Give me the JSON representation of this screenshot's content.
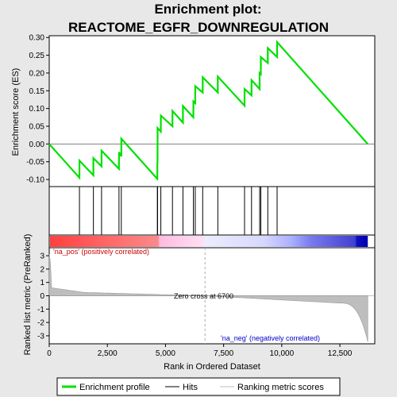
{
  "chart_data": {
    "type": "line",
    "title_line1": "Enrichment plot:",
    "title_line2": "REACTOME_EGFR_DOWNREGULATION",
    "es_ylabel": "Enrichment score (ES)",
    "metric_ylabel": "Ranked list metric (PreRanked)",
    "xlabel": "Rank in Ordered Dataset",
    "xlim": [
      0,
      14000
    ],
    "x_ticks": [
      0,
      2500,
      5000,
      7500,
      10000,
      12500
    ],
    "x_tick_labels": [
      "0",
      "2,500",
      "5,000",
      "7,500",
      "10,000",
      "12,500"
    ],
    "es_ylim": [
      -0.12,
      0.305
    ],
    "es_ticks": [
      -0.1,
      -0.05,
      0.0,
      0.05,
      0.1,
      0.15,
      0.2,
      0.25,
      0.3
    ],
    "es_tick_labels": [
      "-0.10",
      "-0.05",
      "0.00",
      "0.05",
      "0.10",
      "0.15",
      "0.20",
      "0.25",
      "0.30"
    ],
    "metric_ylim": [
      -3.6,
      3.6
    ],
    "metric_ticks": [
      -3,
      -2,
      -1,
      0,
      1,
      2,
      3
    ],
    "metric_tick_labels": [
      "-3",
      "-2",
      "-1",
      "0",
      "1",
      "2",
      "3"
    ],
    "n_genes": 13700,
    "hits": [
      1300,
      1900,
      2250,
      3000,
      3100,
      4650,
      4660,
      4800,
      5300,
      5750,
      6200,
      6280,
      6600,
      7250,
      8400,
      8700,
      9050,
      9100,
      9400,
      9800
    ],
    "es_profile": [
      [
        0,
        0.0
      ],
      [
        1299,
        -0.095
      ],
      [
        1300,
        -0.047
      ],
      [
        1899,
        -0.088
      ],
      [
        1900,
        -0.04
      ],
      [
        2249,
        -0.063
      ],
      [
        2250,
        -0.019
      ],
      [
        2999,
        -0.07
      ],
      [
        3000,
        -0.023
      ],
      [
        3099,
        -0.035
      ],
      [
        3100,
        0.015
      ],
      [
        4649,
        -0.098
      ],
      [
        4650,
        -0.05
      ],
      [
        4659,
        -0.051
      ],
      [
        4660,
        0.045
      ],
      [
        4799,
        0.035
      ],
      [
        4800,
        0.08
      ],
      [
        5299,
        0.05
      ],
      [
        5300,
        0.093
      ],
      [
        5749,
        0.06
      ],
      [
        5750,
        0.107
      ],
      [
        6199,
        0.075
      ],
      [
        6200,
        0.12
      ],
      [
        6279,
        0.115
      ],
      [
        6280,
        0.163
      ],
      [
        6599,
        0.145
      ],
      [
        6600,
        0.188
      ],
      [
        7249,
        0.145
      ],
      [
        7250,
        0.19
      ],
      [
        8399,
        0.108
      ],
      [
        8400,
        0.155
      ],
      [
        8699,
        0.137
      ],
      [
        8700,
        0.18
      ],
      [
        9049,
        0.155
      ],
      [
        9050,
        0.2
      ],
      [
        9099,
        0.197
      ],
      [
        9100,
        0.245
      ],
      [
        9399,
        0.228
      ],
      [
        9400,
        0.27
      ],
      [
        9799,
        0.245
      ],
      [
        9800,
        0.287
      ],
      [
        13700,
        0.0
      ]
    ],
    "zero_cross": 6700,
    "zero_cross_label": "Zero cross at 6700",
    "pos_label": "'na_pos' (positively correlated)",
    "neg_label": "'na_neg' (negatively correlated)",
    "legend": [
      "Enrichment profile",
      "Hits",
      "Ranking metric scores"
    ],
    "colors": {
      "profile": "#00e000",
      "hits": "#000000",
      "metric_fill": "#bebebe",
      "pos_text": "#cc0000",
      "neg_text": "#0000cc",
      "zero_line": "#aaaaaa",
      "frame_bg": "#e8e8e8"
    }
  }
}
